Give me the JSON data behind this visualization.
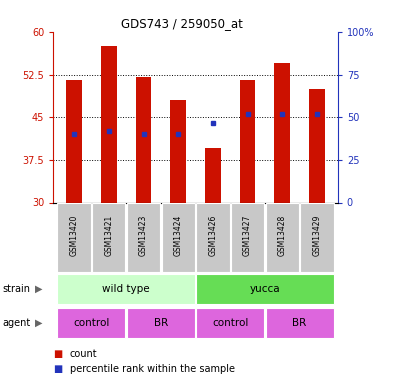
{
  "title": "GDS743 / 259050_at",
  "samples": [
    "GSM13420",
    "GSM13421",
    "GSM13423",
    "GSM13424",
    "GSM13426",
    "GSM13427",
    "GSM13428",
    "GSM13429"
  ],
  "bar_tops": [
    51.5,
    57.5,
    52.0,
    48.0,
    39.5,
    51.5,
    54.5,
    50.0
  ],
  "bar_base": 30,
  "blue_y": [
    42.0,
    42.5,
    42.0,
    42.0,
    44.0,
    45.5,
    45.5,
    45.5
  ],
  "ylim_left": [
    30,
    60
  ],
  "ylim_right": [
    0,
    100
  ],
  "yticks_left": [
    30,
    37.5,
    45,
    52.5,
    60
  ],
  "ytick_labels_left": [
    "30",
    "37.5",
    "45",
    "52.5",
    "60"
  ],
  "yticks_right": [
    0,
    25,
    50,
    75,
    100
  ],
  "ytick_labels_right": [
    "0",
    "25",
    "50",
    "75",
    "100%"
  ],
  "bar_color": "#cc1100",
  "blue_color": "#2233bb",
  "strain_labels": [
    "wild type",
    "yucca"
  ],
  "strain_ranges": [
    [
      0,
      4
    ],
    [
      4,
      8
    ]
  ],
  "strain_colors": [
    "#ccffcc",
    "#66dd55"
  ],
  "agent_labels": [
    "control",
    "BR",
    "control",
    "BR"
  ],
  "agent_ranges": [
    [
      0,
      2
    ],
    [
      2,
      4
    ],
    [
      4,
      6
    ],
    [
      6,
      8
    ]
  ],
  "agent_color": "#dd66dd",
  "tick_color_left": "#cc1100",
  "tick_color_right": "#2233bb",
  "legend_count_color": "#cc1100",
  "legend_pct_color": "#2233bb",
  "sample_bg": "#c8c8c8",
  "sample_divider": "#ffffff"
}
